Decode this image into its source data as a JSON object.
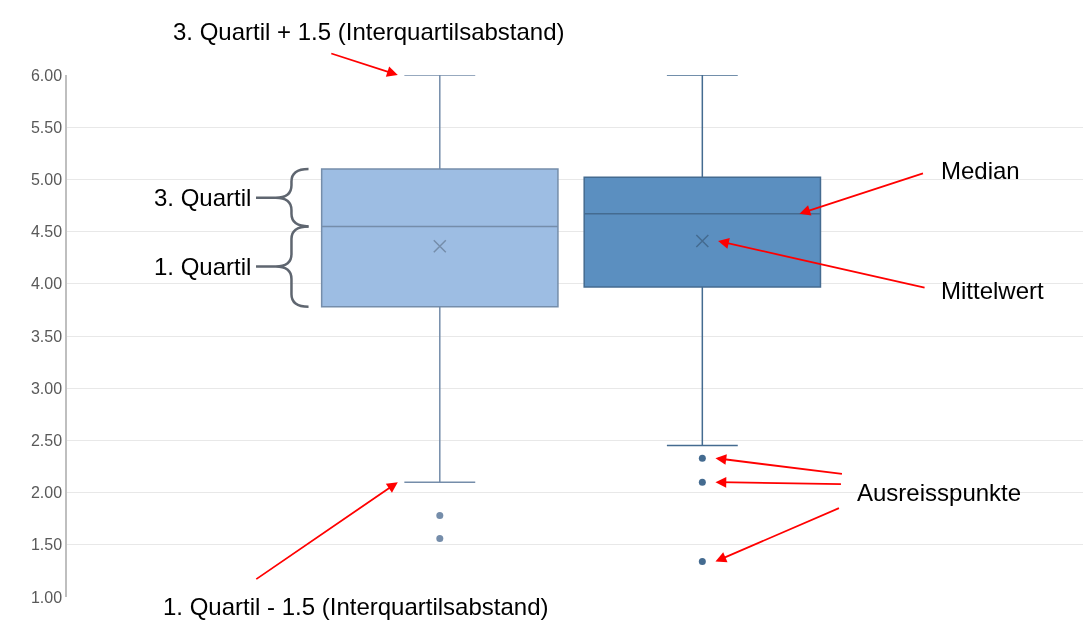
{
  "chart_data": {
    "type": "box",
    "categories": [
      null,
      null
    ],
    "boxes": [
      {
        "low": 2.1,
        "q1": 3.78,
        "median": 4.55,
        "q3": 5.1,
        "high": 6.0,
        "mean": 4.36,
        "outliers": [
          1.78,
          1.56
        ]
      },
      {
        "low": 2.45,
        "q1": 3.97,
        "median": 4.67,
        "q3": 5.02,
        "high": 6.0,
        "mean": 4.41,
        "outliers": [
          2.33,
          2.1,
          1.34
        ]
      }
    ],
    "colors": [
      "#9dbde3",
      "#5b8fc0"
    ],
    "ylim": [
      1,
      6
    ],
    "yticks": [
      {
        "value": 1,
        "label": "1.00"
      },
      {
        "value": 1.5,
        "label": "1.50"
      },
      {
        "value": 2,
        "label": "2.00"
      },
      {
        "value": 2.5,
        "label": "2.50"
      },
      {
        "value": 3,
        "label": "3.00"
      },
      {
        "value": 3.5,
        "label": "3.50"
      },
      {
        "value": 4,
        "label": "4.00"
      },
      {
        "value": 4.5,
        "label": "4.50"
      },
      {
        "value": 5,
        "label": "5.00"
      },
      {
        "value": 5.5,
        "label": "5.50"
      },
      {
        "value": 6,
        "label": "6.00"
      }
    ],
    "grid": "y",
    "marker": "circle",
    "annotations": [
      "3. Quartil + 1.5 (Interquartilsabstand)",
      "3. Quartil",
      "1. Quartil",
      "Median",
      "Mittelwert",
      "Ausreisspunkte",
      "1. Quartil - 1.5 (Interquartilsabstand)"
    ]
  }
}
